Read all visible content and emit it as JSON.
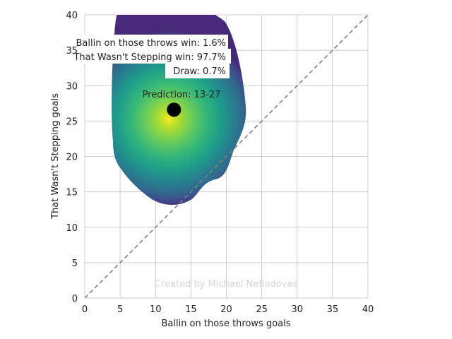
{
  "chart_data": {
    "type": "scatter",
    "xlabel": "Ballin on those throws goals",
    "ylabel": "That Wasn't Stepping goals",
    "xlim": [
      0,
      40
    ],
    "ylim": [
      0,
      40
    ],
    "xticks": [
      0,
      5,
      10,
      15,
      20,
      25,
      30,
      35,
      40
    ],
    "yticks": [
      0,
      5,
      10,
      15,
      20,
      25,
      30,
      35,
      40
    ],
    "grid": true,
    "prediction_point": {
      "x": 12.6,
      "y": 26.6,
      "label": "Prediction: 13-27"
    },
    "density_peak": {
      "x": 11.9,
      "y": 25.3
    },
    "diagonal": {
      "from": [
        0,
        0
      ],
      "to": [
        40,
        40
      ],
      "style": "dashed"
    },
    "annotations": {
      "team1_win": "Ballin on those throws win: 1.6%",
      "team2_win": "That Wasn't Stepping win: 97.7%",
      "draw": "Draw: 0.7%"
    },
    "watermark": "Created by Michael Nefiodovas",
    "colormap": "viridis",
    "colors": {
      "grid": "#cccccc",
      "diagonal": "#808080",
      "point": "#000000",
      "density_low": "#440154",
      "density_mid": "#21918c",
      "density_high": "#fde725"
    }
  }
}
